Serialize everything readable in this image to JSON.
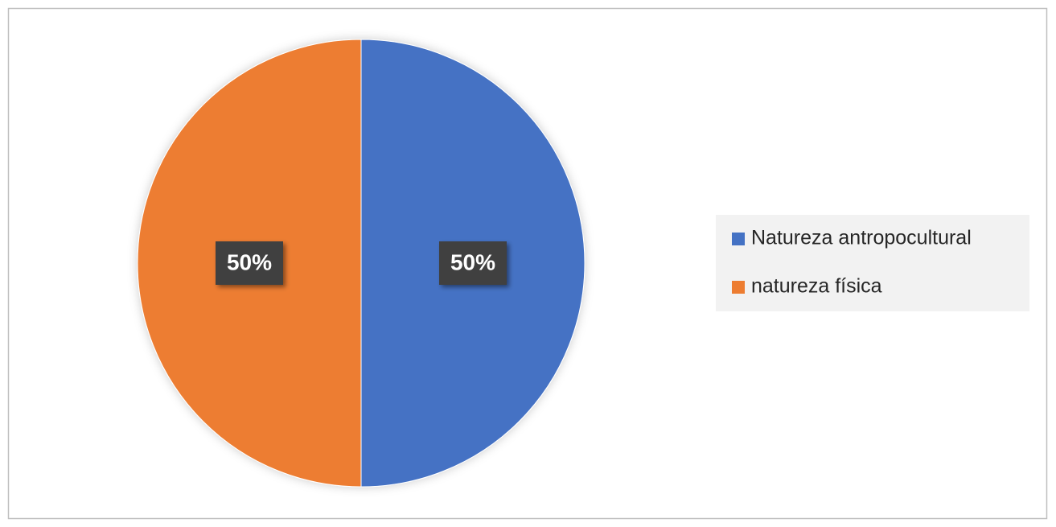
{
  "chart_data": {
    "type": "pie",
    "categories": [
      "Natureza antropocultural",
      "natureza física"
    ],
    "values": [
      50,
      50
    ],
    "value_labels": [
      "50%",
      "50%"
    ],
    "colors": [
      "#4472c4",
      "#ed7d31"
    ],
    "legend": "right"
  }
}
